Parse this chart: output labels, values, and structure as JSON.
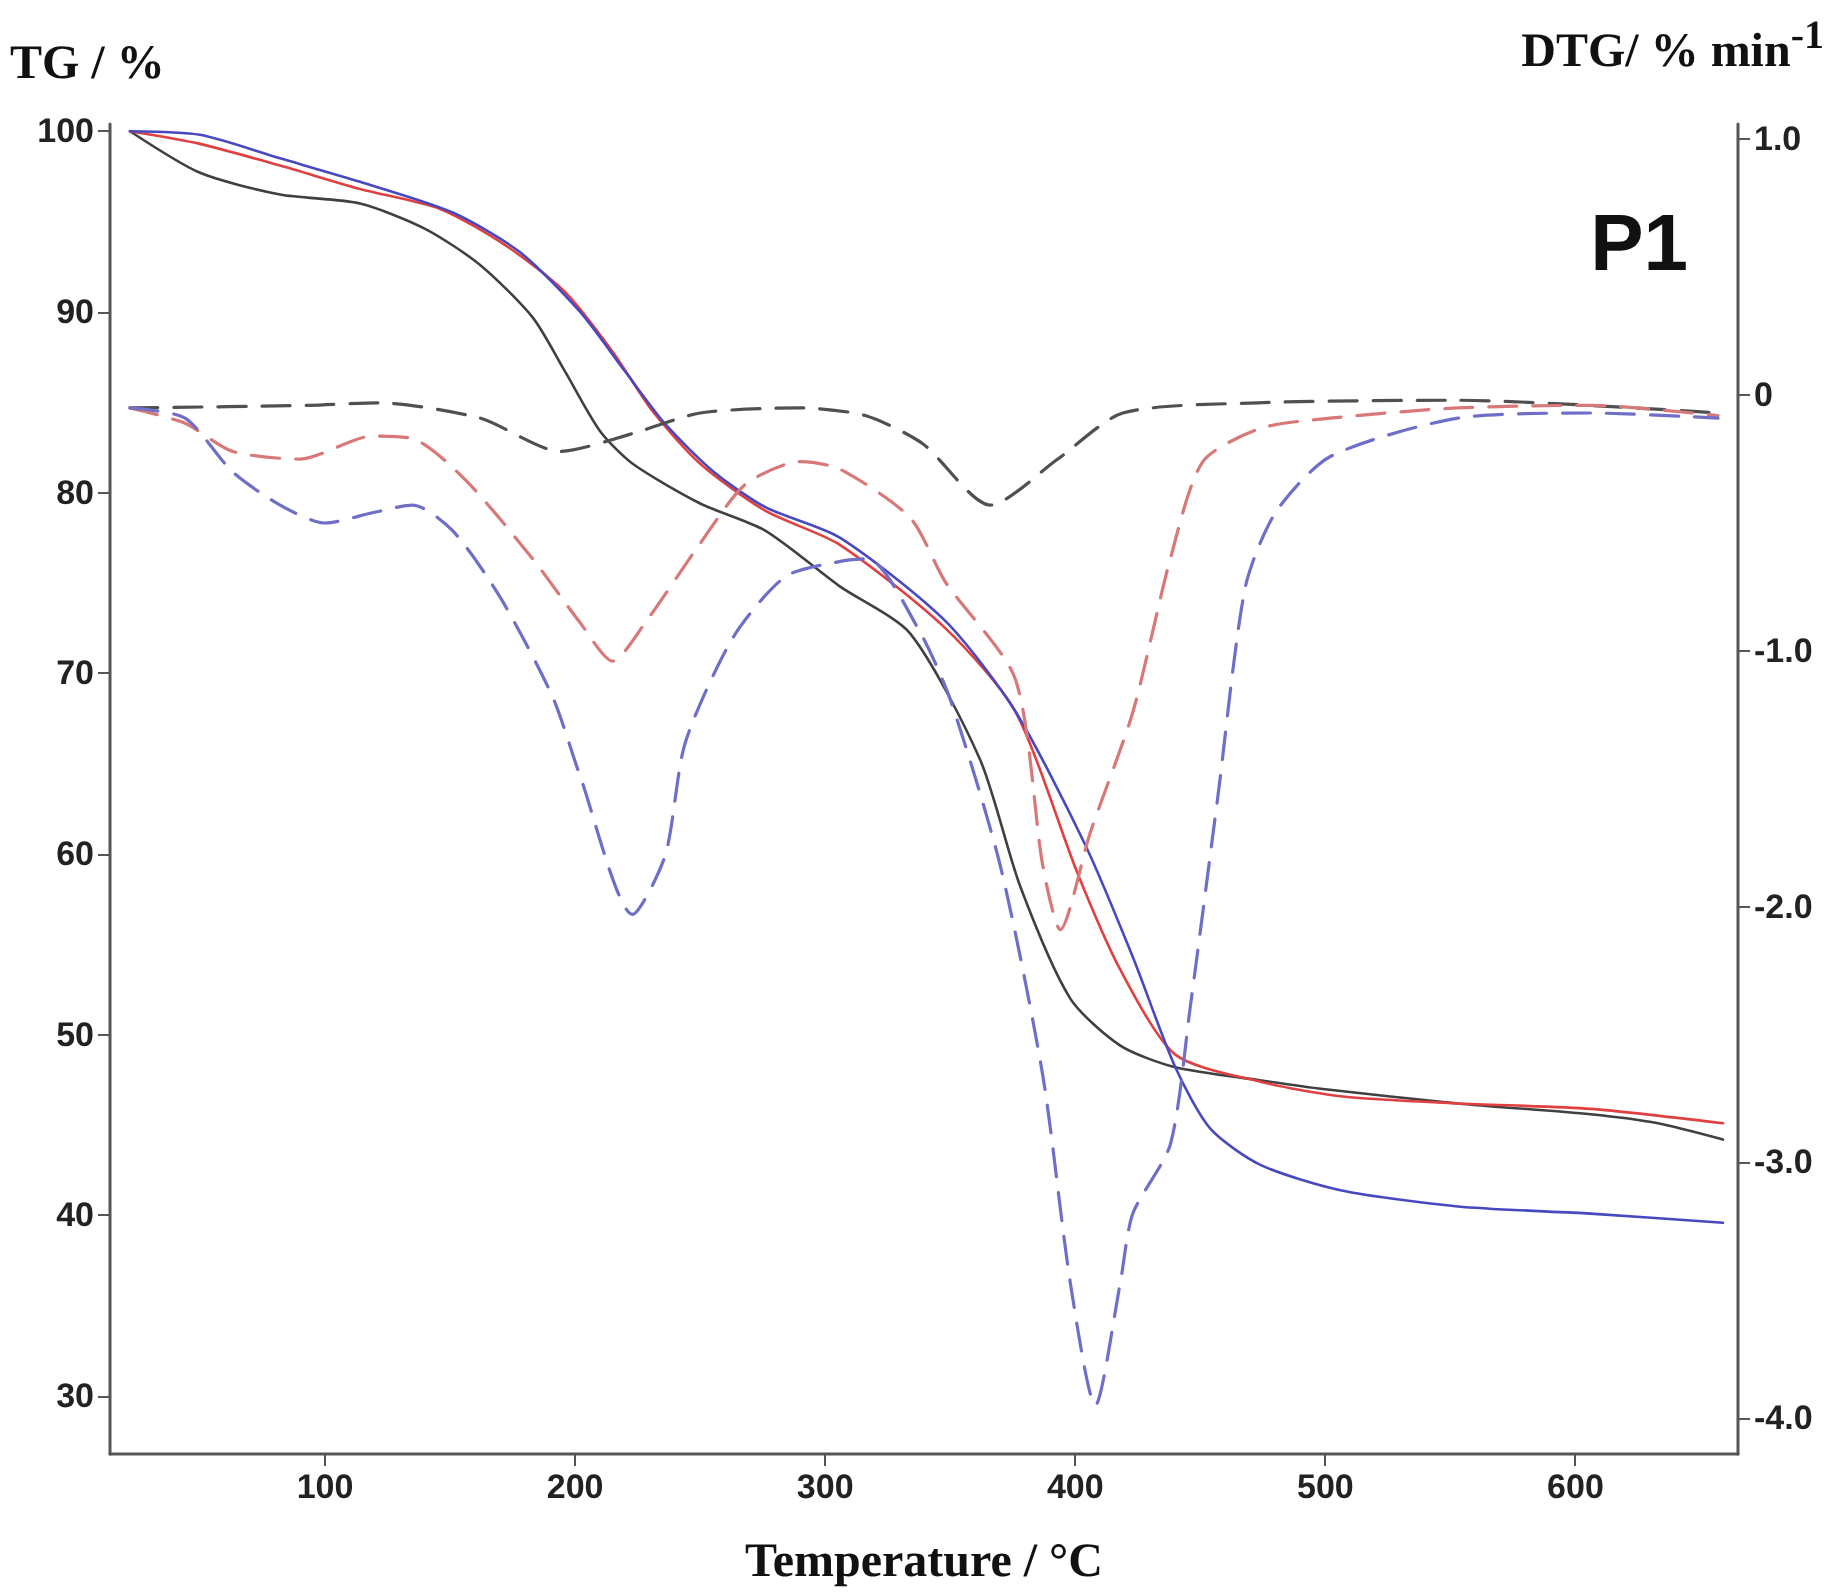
{
  "chart_data": {
    "type": "line",
    "xlabel": "Temperature / °C",
    "ylabel": "TG / %",
    "y2label": "DTG/ % min$^{-1}$",
    "annotations": [
      "P1"
    ],
    "xlim": [
      14,
      665
    ],
    "xticks": [
      100,
      200,
      300,
      400,
      500,
      600
    ],
    "ylim": [
      26.8,
      100.4
    ],
    "yticks": [
      30,
      40,
      50,
      60,
      70,
      80,
      90,
      100
    ],
    "y2lim": [
      -4.14,
      1.06
    ],
    "y2ticks": [
      {
        "value": 1,
        "label": "1.0"
      },
      0,
      {
        "value": -1,
        "label": "-1.0"
      },
      {
        "value": -2,
        "label": "-2.0"
      },
      {
        "value": -3,
        "label": "-3.0"
      },
      {
        "value": -4,
        "label": "-4.0"
      }
    ],
    "grid": false,
    "series": [
      {
        "color": "#404040",
        "line_style": "solid",
        "x": [
          22,
          50,
          82,
          114,
          140,
          162,
          183,
          196,
          210,
          223,
          250,
          276,
          306,
          334,
          362,
          378,
          398,
          418,
          440,
          473,
          499,
          553,
          606,
          633,
          659
        ],
        "values": [
          100,
          97.7,
          96.5,
          96,
          94.6,
          92.6,
          89.7,
          86.7,
          83.4,
          81.6,
          79.4,
          77.9,
          74.8,
          72.2,
          65.2,
          58.2,
          52.0,
          49.4,
          48.2,
          47.5,
          47.0,
          46.2,
          45.6,
          45.1,
          44.2
        ]
      },
      {
        "color": "#e04040",
        "line_style": "solid",
        "x": [
          22,
          50,
          82,
          114,
          146,
          172,
          196,
          215,
          231,
          250,
          276,
          306,
          348,
          376,
          401,
          418,
          440,
          474,
          506,
          553,
          606,
          659
        ],
        "values": [
          100,
          99.3,
          98.1,
          96.8,
          95.7,
          93.7,
          91.1,
          87.8,
          84.5,
          81.6,
          79.0,
          77.1,
          72.5,
          67.9,
          58.9,
          53.6,
          48.9,
          47.4,
          46.6,
          46.2,
          45.9,
          45.1
        ]
      },
      {
        "color": "#4848c0",
        "line_style": "solid",
        "x": [
          22,
          50,
          82,
          114,
          151,
          178,
          202,
          220,
          236,
          255,
          276,
          306,
          348,
          376,
          404,
          423,
          440,
          454,
          474,
          506,
          553,
          606,
          659
        ],
        "values": [
          100,
          99.8,
          98.5,
          97.2,
          95.5,
          93.3,
          90.0,
          86.7,
          83.8,
          81.2,
          79.2,
          77.5,
          72.9,
          67.9,
          60.5,
          54.3,
          48.2,
          44.8,
          42.8,
          41.4,
          40.5,
          40.1,
          39.6
        ]
      },
      {
        "color": "#505050",
        "line_style": "dashed",
        "axis": "y2",
        "x": [
          22,
          94,
          121,
          162,
          194,
          223,
          250,
          290,
          316,
          339,
          366,
          393,
          419,
          473,
          553,
          657
        ],
        "values": [
          -0.05,
          -0.04,
          -0.03,
          -0.09,
          -0.22,
          -0.15,
          -0.07,
          -0.05,
          -0.08,
          -0.19,
          -0.43,
          -0.25,
          -0.07,
          -0.03,
          -0.02,
          -0.07
        ]
      },
      {
        "color": "#d87878",
        "line_style": "dashed",
        "axis": "y2",
        "x": [
          22,
          44,
          63,
          90,
          119,
          135,
          156,
          183,
          202,
          215,
          228,
          250,
          268,
          290,
          306,
          334,
          348,
          376,
          387,
          394,
          406,
          423,
          438,
          451,
          474,
          502,
          553,
          606,
          657
        ],
        "values": [
          -0.05,
          -0.11,
          -0.22,
          -0.25,
          -0.16,
          -0.17,
          -0.33,
          -0.64,
          -0.89,
          -1.04,
          -0.89,
          -0.58,
          -0.35,
          -0.26,
          -0.29,
          -0.48,
          -0.73,
          -1.11,
          -1.84,
          -2.09,
          -1.71,
          -1.24,
          -0.64,
          -0.26,
          -0.13,
          -0.09,
          -0.05,
          -0.04,
          -0.08
        ]
      },
      {
        "color": "#6f6fc8",
        "line_style": "dashed",
        "axis": "y2",
        "x": [
          22,
          44,
          63,
          82,
          100,
          119,
          135,
          151,
          170,
          191,
          202,
          223,
          236,
          244,
          263,
          284,
          306,
          317,
          337,
          350,
          370,
          387,
          398,
          408,
          418,
          423,
          438,
          446,
          457,
          468,
          480,
          502,
          553,
          606,
          657
        ],
        "values": [
          -0.05,
          -0.09,
          -0.3,
          -0.43,
          -0.5,
          -0.46,
          -0.43,
          -0.53,
          -0.79,
          -1.18,
          -1.49,
          -2.03,
          -1.8,
          -1.36,
          -0.95,
          -0.71,
          -0.65,
          -0.64,
          -0.91,
          -1.19,
          -1.84,
          -2.66,
          -3.47,
          -3.95,
          -3.47,
          -3.2,
          -2.93,
          -2.39,
          -1.57,
          -0.75,
          -0.46,
          -0.24,
          -0.09,
          -0.07,
          -0.09
        ]
      }
    ]
  }
}
